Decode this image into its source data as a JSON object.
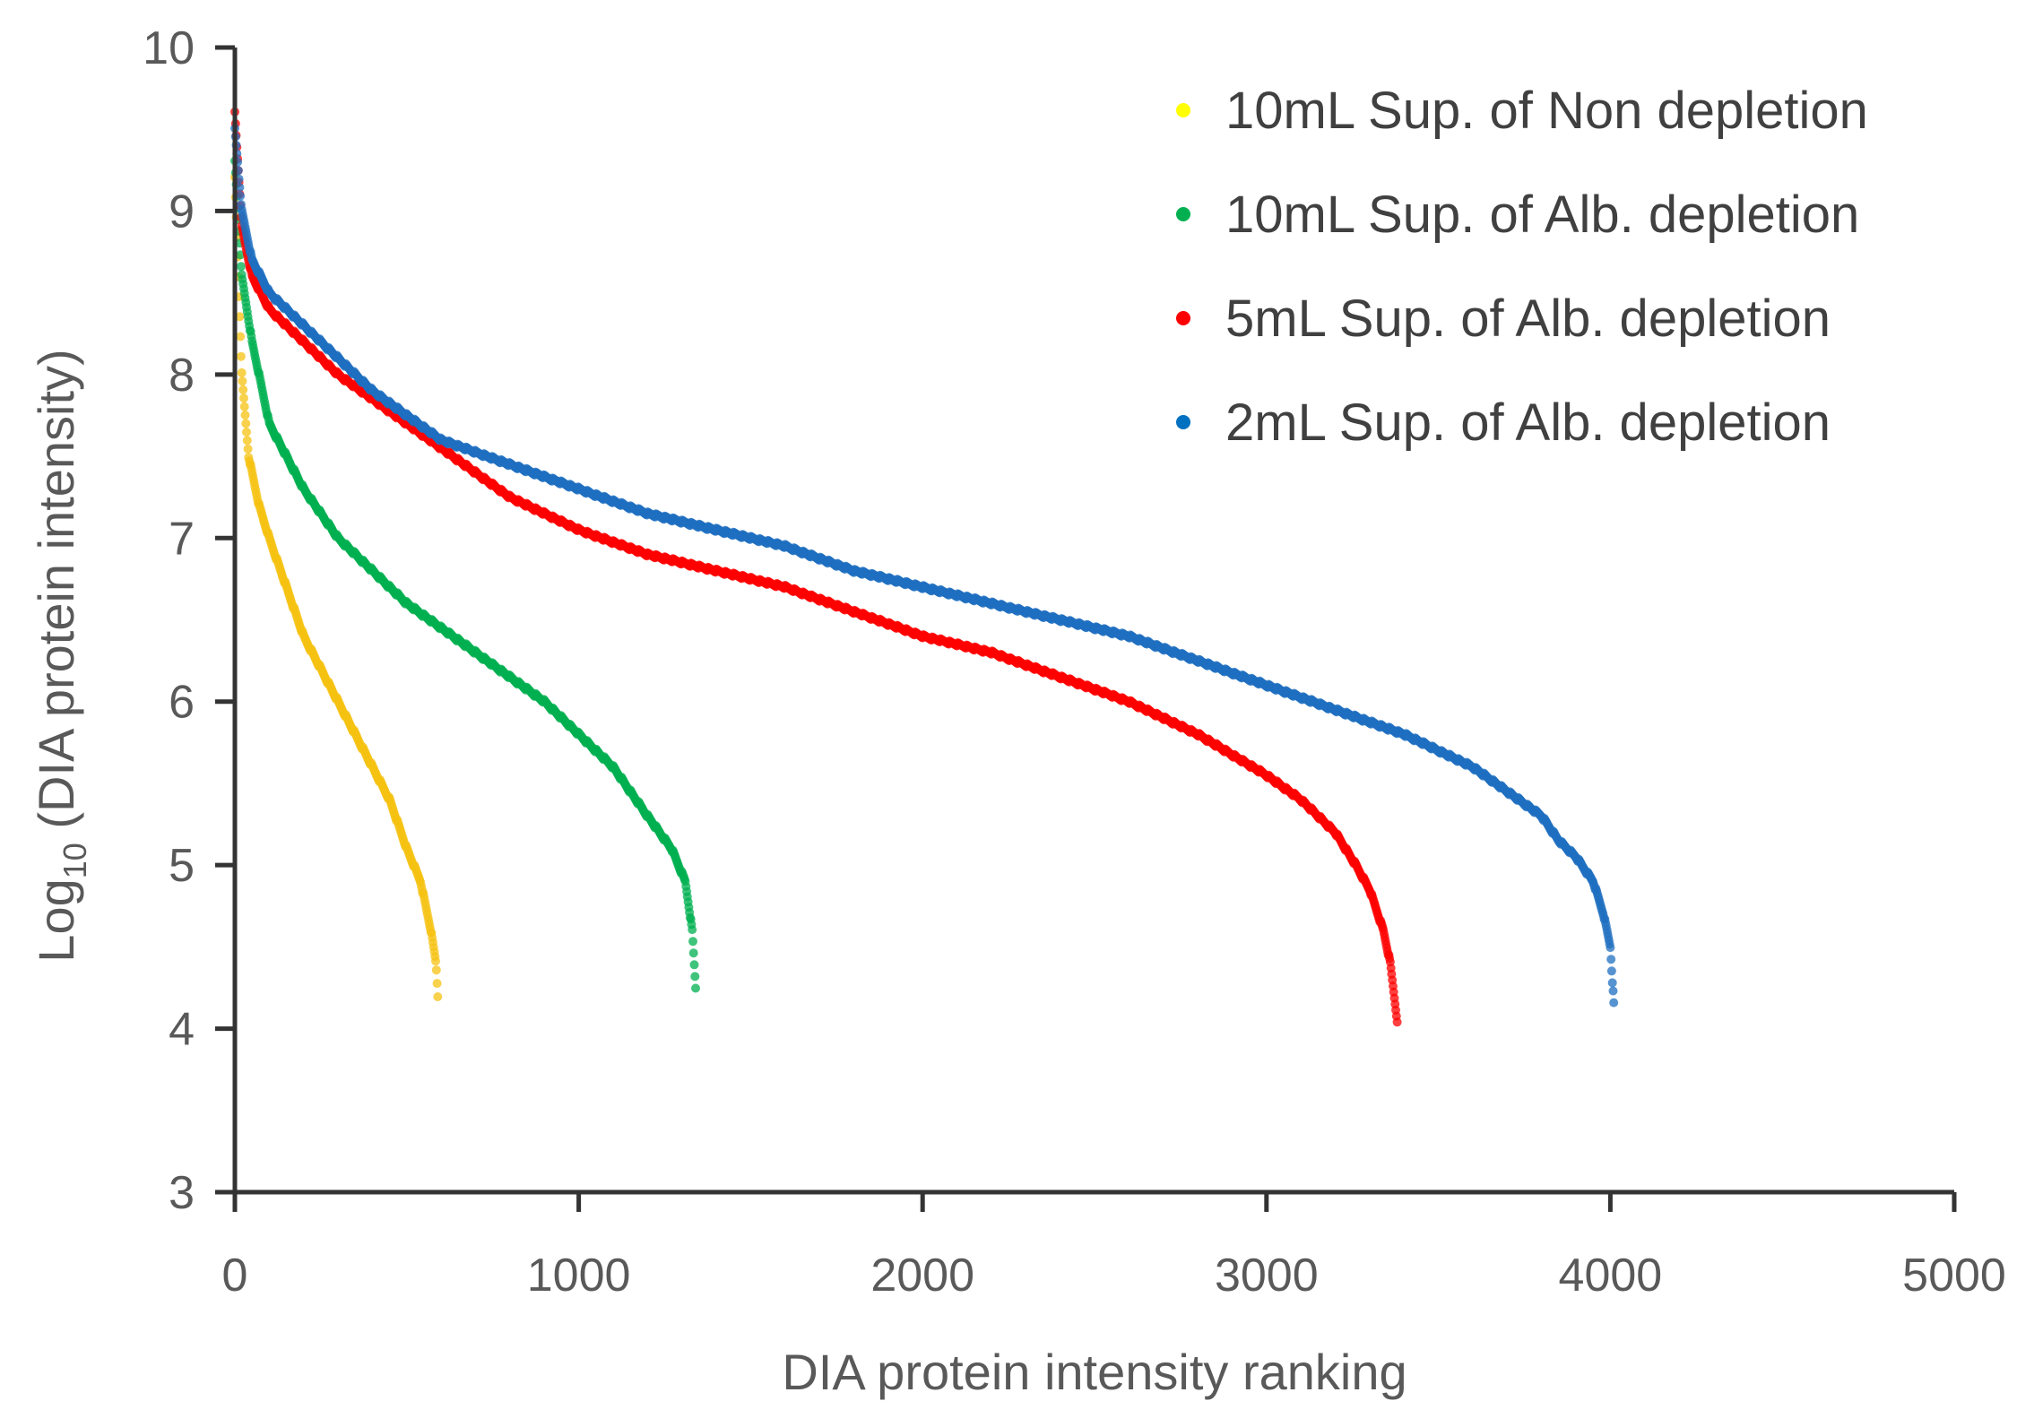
{
  "chart_data": {
    "type": "scatter",
    "title": "",
    "xlabel": "DIA protein intensity ranking",
    "ylabel_prefix": "Log",
    "ylabel_subscript": "10",
    "ylabel_suffix": " (DIA protein intensity)",
    "xlim": [
      0,
      5000
    ],
    "ylim": [
      3,
      10
    ],
    "x_ticks": [
      "0",
      "1000",
      "2000",
      "3000",
      "4000",
      "5000"
    ],
    "y_ticks": [
      "3",
      "4",
      "5",
      "6",
      "7",
      "8",
      "9",
      "10"
    ],
    "grid": false,
    "legend_position": "top-right",
    "series": [
      {
        "name": "10mL Sup. of Non depletion",
        "color": "#FFFF00",
        "point_color": "#F5C211",
        "count": 590,
        "curve": [
          [
            0,
            9.2
          ],
          [
            20,
            8.0
          ],
          [
            40,
            7.5
          ],
          [
            70,
            7.2
          ],
          [
            100,
            7.0
          ],
          [
            150,
            6.7
          ],
          [
            200,
            6.4
          ],
          [
            300,
            6.0
          ],
          [
            400,
            5.6
          ],
          [
            450,
            5.4
          ],
          [
            500,
            5.1
          ],
          [
            540,
            4.9
          ],
          [
            570,
            4.6
          ],
          [
            585,
            4.4
          ],
          [
            590,
            4.2
          ]
        ]
      },
      {
        "name": "10mL Sup. of Alb. depletion",
        "color": "#00B050",
        "point_color": "#00B050",
        "count": 1340,
        "curve": [
          [
            0,
            9.3
          ],
          [
            20,
            8.6
          ],
          [
            50,
            8.2
          ],
          [
            100,
            7.7
          ],
          [
            200,
            7.3
          ],
          [
            300,
            7.0
          ],
          [
            400,
            6.8
          ],
          [
            500,
            6.6
          ],
          [
            700,
            6.3
          ],
          [
            900,
            6.0
          ],
          [
            1000,
            5.8
          ],
          [
            1100,
            5.6
          ],
          [
            1200,
            5.3
          ],
          [
            1270,
            5.1
          ],
          [
            1310,
            4.9
          ],
          [
            1330,
            4.6
          ],
          [
            1340,
            4.25
          ]
        ]
      },
      {
        "name": "5mL Sup. of Alb. depletion",
        "color": "#FF0000",
        "point_color": "#FF0000",
        "count": 3380,
        "curve": [
          [
            0,
            9.6
          ],
          [
            20,
            8.9
          ],
          [
            50,
            8.6
          ],
          [
            100,
            8.4
          ],
          [
            200,
            8.2
          ],
          [
            300,
            8.0
          ],
          [
            400,
            7.85
          ],
          [
            500,
            7.7
          ],
          [
            600,
            7.55
          ],
          [
            700,
            7.4
          ],
          [
            800,
            7.25
          ],
          [
            900,
            7.15
          ],
          [
            1000,
            7.05
          ],
          [
            1200,
            6.9
          ],
          [
            1400,
            6.8
          ],
          [
            1600,
            6.7
          ],
          [
            1800,
            6.55
          ],
          [
            2000,
            6.4
          ],
          [
            2200,
            6.3
          ],
          [
            2400,
            6.15
          ],
          [
            2600,
            6.0
          ],
          [
            2800,
            5.8
          ],
          [
            3000,
            5.55
          ],
          [
            3100,
            5.4
          ],
          [
            3200,
            5.2
          ],
          [
            3260,
            5.0
          ],
          [
            3300,
            4.85
          ],
          [
            3340,
            4.6
          ],
          [
            3360,
            4.4
          ],
          [
            3380,
            4.05
          ]
        ]
      },
      {
        "name": "2mL Sup. of Alb. depletion",
        "color": "#0070C0",
        "point_color": "#1F6FC0",
        "count": 4010,
        "curve": [
          [
            0,
            9.5
          ],
          [
            20,
            9.0
          ],
          [
            50,
            8.7
          ],
          [
            100,
            8.5
          ],
          [
            200,
            8.3
          ],
          [
            300,
            8.1
          ],
          [
            400,
            7.9
          ],
          [
            500,
            7.75
          ],
          [
            600,
            7.6
          ],
          [
            800,
            7.45
          ],
          [
            1000,
            7.3
          ],
          [
            1200,
            7.15
          ],
          [
            1400,
            7.05
          ],
          [
            1600,
            6.95
          ],
          [
            1800,
            6.8
          ],
          [
            2000,
            6.7
          ],
          [
            2200,
            6.6
          ],
          [
            2400,
            6.5
          ],
          [
            2600,
            6.4
          ],
          [
            2800,
            6.25
          ],
          [
            3000,
            6.1
          ],
          [
            3200,
            5.95
          ],
          [
            3400,
            5.8
          ],
          [
            3500,
            5.7
          ],
          [
            3600,
            5.6
          ],
          [
            3700,
            5.45
          ],
          [
            3800,
            5.3
          ],
          [
            3850,
            5.15
          ],
          [
            3900,
            5.05
          ],
          [
            3950,
            4.9
          ],
          [
            3980,
            4.7
          ],
          [
            4000,
            4.5
          ],
          [
            4010,
            4.15
          ]
        ]
      }
    ]
  }
}
